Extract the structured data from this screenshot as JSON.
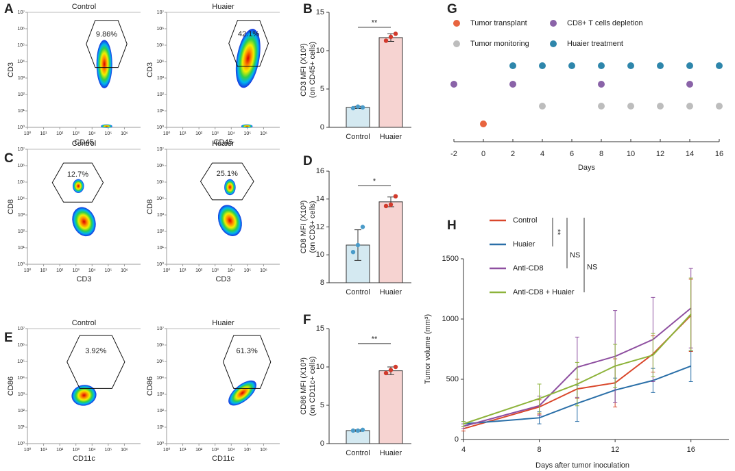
{
  "panel_labels": [
    "A",
    "B",
    "C",
    "D",
    "E",
    "F",
    "G",
    "H"
  ],
  "chart_data": [
    {
      "type": "flow",
      "title": "Control",
      "xlabel": "CD45",
      "ylabel": "CD3",
      "gate_label": "9.86%",
      "xlog": true,
      "ylog": true,
      "xlim": [
        1,
        10000000
      ],
      "ylim": [
        1,
        10000000
      ],
      "xticks": [
        {
          "value": 1,
          "label": "10⁰"
        },
        {
          "value": 10,
          "label": "10¹"
        },
        {
          "value": 100,
          "label": "10²"
        },
        {
          "value": 1000,
          "label": "10³"
        },
        {
          "value": 10000,
          "label": "10⁴"
        },
        {
          "value": 100000,
          "label": "10⁵"
        },
        {
          "value": 1000000,
          "label": "10⁶"
        }
      ],
      "yticks": [
        {
          "value": 1,
          "label": "10⁰"
        },
        {
          "value": 10,
          "label": "10¹"
        },
        {
          "value": 100,
          "label": "10²"
        },
        {
          "value": 1000,
          "label": "10³"
        },
        {
          "value": 10000,
          "label": "10⁴"
        },
        {
          "value": 100000,
          "label": "10⁵"
        },
        {
          "value": 1000000,
          "label": "10⁶"
        },
        {
          "value": 10000000,
          "label": "10⁷"
        }
      ]
    },
    {
      "type": "flow",
      "title": "Huaier",
      "xlabel": "CD45",
      "ylabel": "CD3",
      "gate_label": "42.1%",
      "xlog": true,
      "ylog": true,
      "xlim": [
        1,
        10000000
      ],
      "ylim": [
        1,
        10000000
      ],
      "xticks": [
        {
          "value": 1,
          "label": "10⁰"
        },
        {
          "value": 10,
          "label": "10¹"
        },
        {
          "value": 100,
          "label": "10²"
        },
        {
          "value": 1000,
          "label": "10³"
        },
        {
          "value": 10000,
          "label": "10⁴"
        },
        {
          "value": 100000,
          "label": "10⁵"
        },
        {
          "value": 1000000,
          "label": "10⁶"
        }
      ],
      "yticks": [
        {
          "value": 1,
          "label": "10⁰"
        },
        {
          "value": 10,
          "label": "10¹"
        },
        {
          "value": 100,
          "label": "10²"
        },
        {
          "value": 1000,
          "label": "10³"
        },
        {
          "value": 10000,
          "label": "10⁴"
        },
        {
          "value": 100000,
          "label": "10⁵"
        },
        {
          "value": 1000000,
          "label": "10⁶"
        },
        {
          "value": 10000000,
          "label": "10⁷"
        }
      ]
    },
    {
      "type": "flow",
      "title": "Control",
      "xlabel": "CD3",
      "ylabel": "CD8",
      "gate_label": "12.7%",
      "xlog": true,
      "ylog": true,
      "xlim": [
        1,
        10000000
      ],
      "ylim": [
        1,
        10000000
      ],
      "xticks": [
        {
          "value": 1,
          "label": "10⁰"
        },
        {
          "value": 10,
          "label": "10¹"
        },
        {
          "value": 100,
          "label": "10²"
        },
        {
          "value": 1000,
          "label": "10³"
        },
        {
          "value": 10000,
          "label": "10⁴"
        },
        {
          "value": 100000,
          "label": "10⁵"
        },
        {
          "value": 1000000,
          "label": "10⁶"
        }
      ],
      "yticks": [
        {
          "value": 1,
          "label": "10⁰"
        },
        {
          "value": 10,
          "label": "10¹"
        },
        {
          "value": 100,
          "label": "10²"
        },
        {
          "value": 1000,
          "label": "10³"
        },
        {
          "value": 10000,
          "label": "10⁴"
        },
        {
          "value": 100000,
          "label": "10⁵"
        },
        {
          "value": 1000000,
          "label": "10⁶"
        },
        {
          "value": 10000000,
          "label": "10⁷"
        }
      ]
    },
    {
      "type": "flow",
      "title": "Huaier",
      "xlabel": "CD3",
      "ylabel": "CD8",
      "gate_label": "25.1%",
      "xlog": true,
      "ylog": true,
      "xlim": [
        1,
        10000000
      ],
      "ylim": [
        1,
        10000000
      ],
      "xticks": [
        {
          "value": 1,
          "label": "10⁰"
        },
        {
          "value": 10,
          "label": "10¹"
        },
        {
          "value": 100,
          "label": "10²"
        },
        {
          "value": 1000,
          "label": "10³"
        },
        {
          "value": 10000,
          "label": "10⁴"
        },
        {
          "value": 100000,
          "label": "10⁵"
        },
        {
          "value": 1000000,
          "label": "10⁶"
        }
      ],
      "yticks": [
        {
          "value": 1,
          "label": "10⁰"
        },
        {
          "value": 10,
          "label": "10¹"
        },
        {
          "value": 100,
          "label": "10²"
        },
        {
          "value": 1000,
          "label": "10³"
        },
        {
          "value": 10000,
          "label": "10⁴"
        },
        {
          "value": 100000,
          "label": "10⁵"
        },
        {
          "value": 1000000,
          "label": "10⁶"
        },
        {
          "value": 10000000,
          "label": "10⁷"
        }
      ]
    },
    {
      "type": "flow",
      "title": "Control",
      "xlabel": "CD11c",
      "ylabel": "CD86",
      "gate_label": "3.92%",
      "xlog": true,
      "ylog": true,
      "xlim": [
        1,
        10000000
      ],
      "ylim": [
        1,
        10000000
      ],
      "xticks": [
        {
          "value": 1,
          "label": "10⁰"
        },
        {
          "value": 10,
          "label": "10¹"
        },
        {
          "value": 100,
          "label": "10²"
        },
        {
          "value": 1000,
          "label": "10³"
        },
        {
          "value": 10000,
          "label": "10⁴"
        },
        {
          "value": 100000,
          "label": "10⁵"
        },
        {
          "value": 1000000,
          "label": "10⁶"
        }
      ],
      "yticks": [
        {
          "value": 1,
          "label": "10⁰"
        },
        {
          "value": 10,
          "label": "10¹"
        },
        {
          "value": 100,
          "label": "10²"
        },
        {
          "value": 1000,
          "label": "10³"
        },
        {
          "value": 10000,
          "label": "10⁴"
        },
        {
          "value": 100000,
          "label": "10⁵"
        },
        {
          "value": 1000000,
          "label": "10⁶"
        },
        {
          "value": 10000000,
          "label": "10⁷"
        }
      ]
    },
    {
      "type": "flow",
      "title": "Huaier",
      "xlabel": "CD11c",
      "ylabel": "CD86",
      "gate_label": "61.3%",
      "xlog": true,
      "ylog": true,
      "xlim": [
        1,
        10000000
      ],
      "ylim": [
        1,
        10000000
      ],
      "xticks": [
        {
          "value": 1,
          "label": "10⁰"
        },
        {
          "value": 10,
          "label": "10¹"
        },
        {
          "value": 100,
          "label": "10²"
        },
        {
          "value": 1000,
          "label": "10³"
        },
        {
          "value": 10000,
          "label": "10⁴"
        },
        {
          "value": 100000,
          "label": "10⁵"
        },
        {
          "value": 1000000,
          "label": "10⁶"
        }
      ],
      "yticks": [
        {
          "value": 1,
          "label": "10⁰"
        },
        {
          "value": 10,
          "label": "10¹"
        },
        {
          "value": 100,
          "label": "10²"
        },
        {
          "value": 1000,
          "label": "10³"
        },
        {
          "value": 10000,
          "label": "10⁴"
        },
        {
          "value": 100000,
          "label": "10⁵"
        },
        {
          "value": 1000000,
          "label": "10⁶"
        },
        {
          "value": 10000000,
          "label": "10⁷"
        }
      ]
    },
    {
      "type": "bar",
      "ylabel": [
        "CD3 MFI (X10³)",
        "(on CD45+ cells)"
      ],
      "categories": [
        "Control",
        "Huaier"
      ],
      "values": [
        2.6,
        11.7
      ],
      "errors": [
        0.15,
        0.5
      ],
      "points": [
        [
          2.5,
          2.7,
          2.6
        ],
        [
          11.3,
          11.8,
          12.2
        ]
      ],
      "colors": [
        "#d4e9f1",
        "#f6d3d1"
      ],
      "point_colors": [
        "#4a9bc9",
        "#d23a2c"
      ],
      "ylim": [
        0,
        15
      ],
      "yticks": [
        0,
        5,
        10,
        15
      ],
      "significance": "**"
    },
    {
      "type": "bar",
      "ylabel": [
        "CD8 MFI (X10³)",
        "(on CD3+ cells)"
      ],
      "categories": [
        "Control",
        "Huaier"
      ],
      "values": [
        10.7,
        13.8
      ],
      "errors": [
        1.1,
        0.35
      ],
      "points": [
        [
          10.2,
          10.7,
          12.0
        ],
        [
          13.5,
          13.6,
          14.2
        ]
      ],
      "colors": [
        "#d4e9f1",
        "#f6d3d1"
      ],
      "point_colors": [
        "#4a9bc9",
        "#d23a2c"
      ],
      "ylim": [
        8,
        16
      ],
      "yticks": [
        8,
        10,
        12,
        14,
        16
      ],
      "significance": "*"
    },
    {
      "type": "bar",
      "ylabel": [
        "CD86 MFI (X10³)",
        "(on CD11c+ cells)"
      ],
      "categories": [
        "Control",
        "Huaier"
      ],
      "values": [
        1.7,
        9.5
      ],
      "errors": [
        0.1,
        0.5
      ],
      "points": [
        [
          1.7,
          1.7,
          1.8
        ],
        [
          9.2,
          9.6,
          10.0
        ]
      ],
      "colors": [
        "#d4e9f1",
        "#f6d3d1"
      ],
      "point_colors": [
        "#4a9bc9",
        "#d23a2c"
      ],
      "ylim": [
        0,
        15
      ],
      "yticks": [
        0,
        5,
        10,
        15
      ],
      "significance": "**"
    },
    {
      "type": "timeline",
      "xlabel": "Days",
      "xlim": [
        -2,
        16
      ],
      "xticks": [
        -2,
        0,
        2,
        4,
        6,
        8,
        10,
        12,
        14,
        16
      ],
      "series": [
        {
          "name": "Tumor transplant",
          "color": "#e8643f",
          "x": [
            0
          ]
        },
        {
          "name": "CD8+ T cells depletion",
          "color": "#8a63a8",
          "x": [
            -2,
            2,
            8,
            14
          ]
        },
        {
          "name": "Tumor monitoring",
          "color": "#bdbdbd",
          "x": [
            4,
            8,
            10,
            12,
            14,
            16
          ]
        },
        {
          "name": "Huaier treatment",
          "color": "#2e86ab",
          "x": [
            2,
            4,
            6,
            8,
            10,
            12,
            14,
            16
          ]
        }
      ]
    },
    {
      "type": "line",
      "xlabel": "Days after tumor inoculation",
      "ylabel": "Tumor volume (mm³)",
      "x": [
        4,
        8,
        10,
        12,
        14,
        16
      ],
      "xlim": [
        4,
        18
      ],
      "xticks": [
        4,
        8,
        12,
        16
      ],
      "ylim": [
        0,
        1500
      ],
      "yticks": [
        0,
        500,
        1000,
        1500
      ],
      "series": [
        {
          "name": "Control",
          "color": "#d9472b",
          "values": [
            90,
            270,
            420,
            470,
            710,
            1030
          ],
          "errors": [
            20,
            60,
            80,
            200,
            150,
            300
          ]
        },
        {
          "name": "Huaier",
          "color": "#2a6fa8",
          "values": [
            130,
            180,
            300,
            410,
            490,
            610
          ],
          "errors": [
            20,
            50,
            150,
            100,
            100,
            130
          ]
        },
        {
          "name": "Anti-CD8",
          "color": "#8e4fa0",
          "values": [
            110,
            280,
            600,
            690,
            830,
            1090
          ],
          "errors": [
            20,
            80,
            250,
            380,
            350,
            330
          ]
        },
        {
          "name": "Anti-CD8 + Huaier",
          "color": "#8db33a",
          "values": [
            130,
            340,
            460,
            610,
            700,
            1040
          ],
          "errors": [
            20,
            120,
            180,
            180,
            180,
            300
          ]
        }
      ],
      "annotations": [
        "**",
        "NS",
        "NS"
      ]
    }
  ]
}
